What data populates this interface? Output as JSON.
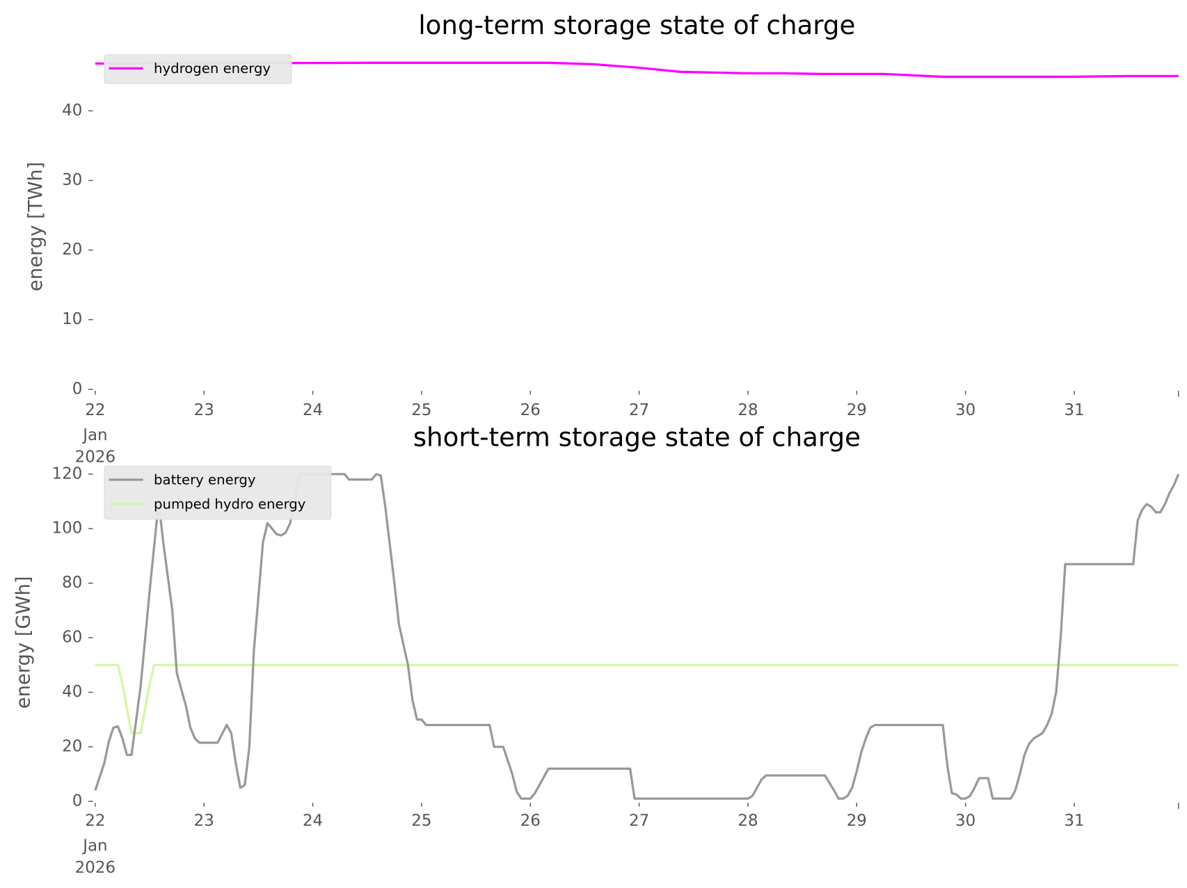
{
  "chart_data": [
    {
      "type": "line",
      "title": "long-term storage state of charge",
      "xlabel": "",
      "ylabel": "energy [TWh]",
      "ylim": [
        0,
        48.5
      ],
      "xlim": [
        "2026-01-22 00:00",
        "2026-01-31 23:00"
      ],
      "yticks": [
        "0",
        "10",
        "20",
        "30",
        "40"
      ],
      "xticks": [
        "22",
        "23",
        "24",
        "25",
        "26",
        "27",
        "28",
        "29",
        "30",
        "31"
      ],
      "xtick_sublabel": [
        "Jan",
        "2026"
      ],
      "grid": false,
      "legend_position": "top-left",
      "series": [
        {
          "name": "hydrogen energy",
          "color": "#ff00ff",
          "points": [
            [
              "2026-01-22 00:00",
              46.8
            ],
            [
              "2026-01-24 12:00",
              46.9
            ],
            [
              "2026-01-26 04:00",
              46.9
            ],
            [
              "2026-01-26 14:00",
              46.7
            ],
            [
              "2026-01-27 00:00",
              46.2
            ],
            [
              "2026-01-27 09:00",
              45.6
            ],
            [
              "2026-01-28 00:00",
              45.4
            ],
            [
              "2026-01-28 08:00",
              45.4
            ],
            [
              "2026-01-28 16:00",
              45.3
            ],
            [
              "2026-01-29 06:00",
              45.3
            ],
            [
              "2026-01-29 19:00",
              44.9
            ],
            [
              "2026-01-30 23:00",
              44.9
            ],
            [
              "2026-01-31 12:00",
              45.0
            ],
            [
              "2026-01-31 23:00",
              45.0
            ]
          ]
        }
      ]
    },
    {
      "type": "line",
      "title": "short-term storage state of charge",
      "xlabel": "",
      "ylabel": "energy [GWh]",
      "ylim": [
        0,
        121
      ],
      "xlim": [
        "2026-01-22 00:00",
        "2026-01-31 23:00"
      ],
      "yticks": [
        "0",
        "20",
        "40",
        "60",
        "80",
        "100",
        "120"
      ],
      "xticks": [
        "22",
        "23",
        "24",
        "25",
        "26",
        "27",
        "28",
        "29",
        "30",
        "31"
      ],
      "xtick_sublabel": [
        "Jan",
        "2026"
      ],
      "grid": false,
      "legend_position": "top-left",
      "series": [
        {
          "name": "battery energy",
          "color": "#999999",
          "points": [
            [
              "2026-01-22 00:00",
              4
            ],
            [
              "2026-01-22 02:00",
              14
            ],
            [
              "2026-01-22 03:00",
              22
            ],
            [
              "2026-01-22 04:00",
              27
            ],
            [
              "2026-01-22 05:00",
              27.5
            ],
            [
              "2026-01-22 06:00",
              23
            ],
            [
              "2026-01-22 07:00",
              17
            ],
            [
              "2026-01-22 08:00",
              17
            ],
            [
              "2026-01-22 10:00",
              42
            ],
            [
              "2026-01-22 12:00",
              77
            ],
            [
              "2026-01-22 14:00",
              110
            ],
            [
              "2026-01-22 15:00",
              95
            ],
            [
              "2026-01-22 17:00",
              70
            ],
            [
              "2026-01-22 18:00",
              47
            ],
            [
              "2026-01-22 20:00",
              35
            ],
            [
              "2026-01-22 21:00",
              27
            ],
            [
              "2026-01-22 22:00",
              23
            ],
            [
              "2026-01-22 23:00",
              21.5
            ],
            [
              "2026-01-23 03:00",
              21.5
            ],
            [
              "2026-01-23 05:00",
              28
            ],
            [
              "2026-01-23 06:00",
              25
            ],
            [
              "2026-01-23 07:00",
              14
            ],
            [
              "2026-01-23 08:00",
              5
            ],
            [
              "2026-01-23 09:00",
              6
            ],
            [
              "2026-01-23 10:00",
              20
            ],
            [
              "2026-01-23 11:00",
              55
            ],
            [
              "2026-01-23 13:00",
              95
            ],
            [
              "2026-01-23 14:00",
              102
            ],
            [
              "2026-01-23 15:00",
              100
            ],
            [
              "2026-01-23 16:00",
              98
            ],
            [
              "2026-01-23 17:00",
              97.5
            ],
            [
              "2026-01-23 18:00",
              98.5
            ],
            [
              "2026-01-23 19:00",
              102
            ],
            [
              "2026-01-23 20:00",
              110
            ],
            [
              "2026-01-23 21:00",
              120
            ],
            [
              "2026-01-24 07:00",
              120
            ],
            [
              "2026-01-24 08:00",
              118
            ],
            [
              "2026-01-24 13:00",
              118
            ],
            [
              "2026-01-24 14:00",
              120
            ],
            [
              "2026-01-24 15:00",
              119.5
            ],
            [
              "2026-01-24 16:00",
              108
            ],
            [
              "2026-01-24 18:00",
              80
            ],
            [
              "2026-01-24 19:00",
              65
            ],
            [
              "2026-01-24 21:00",
              50
            ],
            [
              "2026-01-24 22:00",
              37
            ],
            [
              "2026-01-24 23:00",
              30
            ],
            [
              "2026-01-25 00:00",
              30
            ],
            [
              "2026-01-25 01:00",
              28
            ],
            [
              "2026-01-25 15:00",
              28
            ],
            [
              "2026-01-25 16:00",
              20
            ],
            [
              "2026-01-25 18:00",
              20
            ],
            [
              "2026-01-25 20:00",
              10
            ],
            [
              "2026-01-25 21:00",
              3.5
            ],
            [
              "2026-01-25 22:00",
              1
            ],
            [
              "2026-01-26 00:00",
              1
            ],
            [
              "2026-01-26 01:00",
              3
            ],
            [
              "2026-01-26 03:00",
              9
            ],
            [
              "2026-01-26 04:00",
              12
            ],
            [
              "2026-01-26 22:00",
              12
            ],
            [
              "2026-01-26 23:00",
              1
            ],
            [
              "2026-01-28 00:00",
              1
            ],
            [
              "2026-01-28 01:00",
              2
            ],
            [
              "2026-01-28 02:00",
              5
            ],
            [
              "2026-01-28 03:00",
              8
            ],
            [
              "2026-01-28 04:00",
              9.5
            ],
            [
              "2026-01-28 17:00",
              9.5
            ],
            [
              "2026-01-28 19:00",
              4
            ],
            [
              "2026-01-28 20:00",
              1
            ],
            [
              "2026-01-28 21:00",
              1
            ],
            [
              "2026-01-28 22:00",
              2
            ],
            [
              "2026-01-28 23:00",
              5
            ],
            [
              "2026-01-29 00:00",
              11
            ],
            [
              "2026-01-29 01:00",
              18
            ],
            [
              "2026-01-29 02:00",
              23
            ],
            [
              "2026-01-29 03:00",
              27
            ],
            [
              "2026-01-29 04:00",
              28
            ],
            [
              "2026-01-29 19:00",
              28
            ],
            [
              "2026-01-29 20:00",
              13
            ],
            [
              "2026-01-29 21:00",
              3
            ],
            [
              "2026-01-29 22:00",
              2.5
            ],
            [
              "2026-01-29 23:00",
              1
            ],
            [
              "2026-01-30 00:00",
              1
            ],
            [
              "2026-01-30 01:00",
              2
            ],
            [
              "2026-01-30 02:00",
              5
            ],
            [
              "2026-01-30 03:00",
              8.5
            ],
            [
              "2026-01-30 05:00",
              8.5
            ],
            [
              "2026-01-30 06:00",
              1
            ],
            [
              "2026-01-30 10:00",
              1
            ],
            [
              "2026-01-30 11:00",
              4
            ],
            [
              "2026-01-30 12:00",
              10
            ],
            [
              "2026-01-30 13:00",
              17
            ],
            [
              "2026-01-30 14:00",
              21
            ],
            [
              "2026-01-30 15:00",
              23
            ],
            [
              "2026-01-30 17:00",
              25
            ],
            [
              "2026-01-30 18:00",
              28
            ],
            [
              "2026-01-30 19:00",
              32
            ],
            [
              "2026-01-30 20:00",
              40
            ],
            [
              "2026-01-30 21:00",
              60
            ],
            [
              "2026-01-30 22:00",
              87
            ],
            [
              "2026-01-31 13:00",
              87
            ],
            [
              "2026-01-31 14:00",
              103
            ],
            [
              "2026-01-31 15:00",
              107
            ],
            [
              "2026-01-31 16:00",
              109
            ],
            [
              "2026-01-31 17:00",
              108
            ],
            [
              "2026-01-31 18:00",
              106
            ],
            [
              "2026-01-31 19:00",
              106
            ],
            [
              "2026-01-31 20:00",
              109
            ],
            [
              "2026-01-31 21:00",
              113
            ],
            [
              "2026-01-31 22:00",
              116
            ],
            [
              "2026-01-31 23:00",
              120
            ]
          ]
        },
        {
          "name": "pumped hydro energy",
          "color": "#d4f7a0",
          "points": [
            [
              "2026-01-22 00:00",
              50
            ],
            [
              "2026-01-22 05:00",
              50
            ],
            [
              "2026-01-22 06:00",
              43
            ],
            [
              "2026-01-22 08:00",
              25
            ],
            [
              "2026-01-22 10:00",
              25
            ],
            [
              "2026-01-22 12:00",
              43
            ],
            [
              "2026-01-22 13:00",
              50
            ],
            [
              "2026-01-31 23:00",
              50
            ]
          ]
        }
      ]
    }
  ]
}
